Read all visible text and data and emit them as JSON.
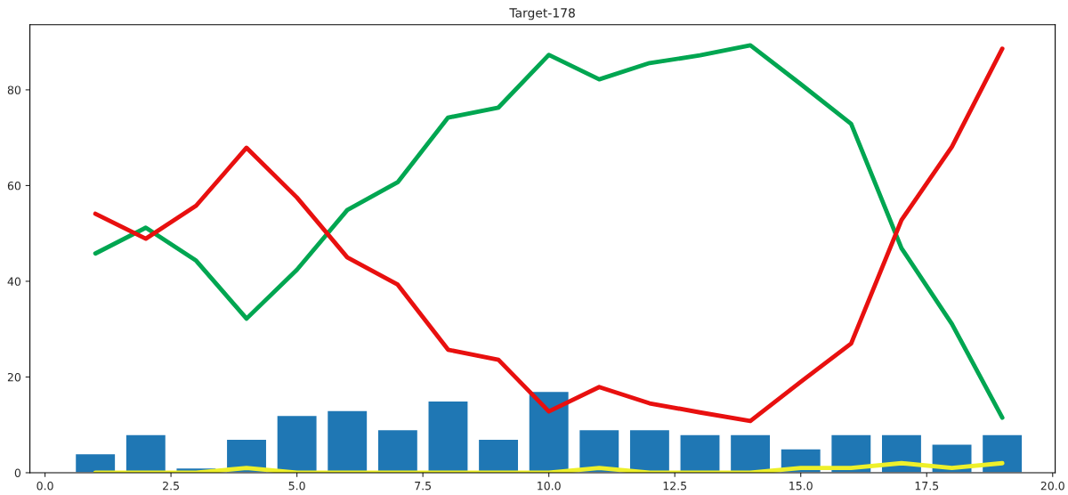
{
  "chart_data": {
    "type": "bar",
    "title": "Target-178",
    "x": [
      1,
      2,
      3,
      4,
      5,
      6,
      7,
      8,
      9,
      10,
      11,
      12,
      13,
      14,
      15,
      16,
      17,
      18,
      19
    ],
    "xlim": [
      -0.3,
      20.05
    ],
    "xticks": [
      {
        "value": 0,
        "label": "0.0"
      },
      {
        "value": 2.5,
        "label": "2.5"
      },
      {
        "value": 5,
        "label": "5.0"
      },
      {
        "value": 7.5,
        "label": "7.5"
      },
      {
        "value": 10,
        "label": "10.0"
      },
      {
        "value": 12.5,
        "label": "12.5"
      },
      {
        "value": 15,
        "label": "15.0"
      },
      {
        "value": 17.5,
        "label": "17.5"
      },
      {
        "value": 20,
        "label": "20.0"
      }
    ],
    "ylim": [
      0,
      93.6
    ],
    "yticks": [
      0,
      20,
      40,
      60,
      80
    ],
    "grid": false,
    "legend": false,
    "series": [
      {
        "color": "#1f77b4",
        "values": [
          4,
          8,
          1,
          7,
          12,
          13,
          9,
          15,
          7,
          17,
          9,
          9,
          8,
          8,
          5,
          8,
          8,
          6,
          8
        ]
      },
      {
        "type": "line",
        "color": "#00a651",
        "values": [
          45.8,
          51.2,
          44.3,
          32.2,
          42.4,
          54.9,
          60.7,
          74.2,
          76.3,
          87.3,
          82.2,
          85.6,
          87.2,
          89.3,
          81.2,
          72.9,
          46.9,
          31.1,
          11.5
        ]
      },
      {
        "type": "line",
        "color": "#e8100f",
        "values": [
          54.1,
          48.9,
          55.8,
          67.9,
          57.5,
          45,
          39.3,
          25.7,
          23.6,
          12.8,
          17.9,
          14.5,
          12.6,
          10.8,
          19,
          27,
          52.8,
          68.1,
          88.6
        ]
      },
      {
        "type": "line",
        "color": "#eef02a",
        "values": [
          0,
          0,
          0,
          1,
          0,
          0,
          0,
          0,
          0,
          0,
          1,
          0,
          0,
          0,
          1,
          1,
          2,
          1,
          2
        ]
      }
    ]
  }
}
